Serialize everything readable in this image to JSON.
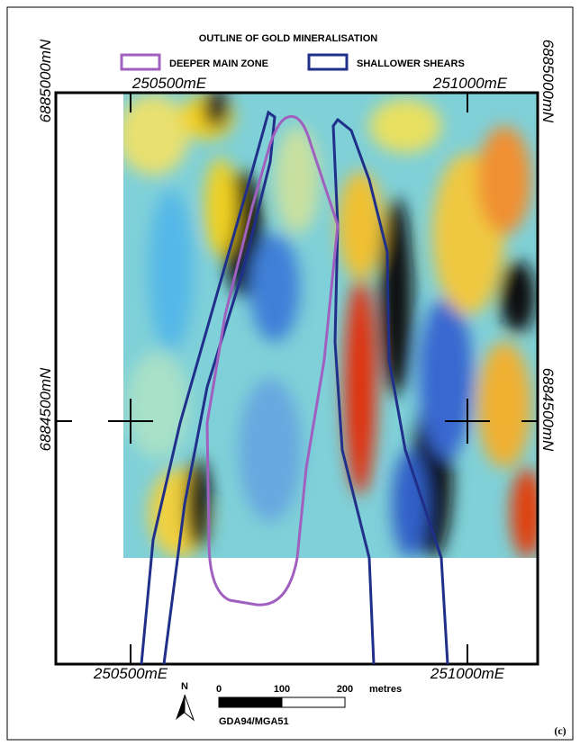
{
  "title": "OUTLINE OF GOLD MINERALISATION",
  "legend": [
    {
      "label": "DEEPER MAIN ZONE"
    },
    {
      "label": "SHALLOWER SHEARS"
    }
  ],
  "coordinates": {
    "top_left_easting": "250500mE",
    "top_right_easting": "251000mE",
    "bottom_left_easting": "250500mE",
    "bottom_right_easting": "251000mE",
    "left_top_northing": "6885000mN",
    "right_top_northing": "6885000mN",
    "left_mid_northing": "6884500mN",
    "right_mid_northing": "6884500mN"
  },
  "north_label": "N",
  "scale_bar": {
    "labels": [
      "0",
      "100",
      "200"
    ],
    "unit": "metres",
    "datum": "GDA94/MGA51"
  },
  "panel_label": "(c)"
}
